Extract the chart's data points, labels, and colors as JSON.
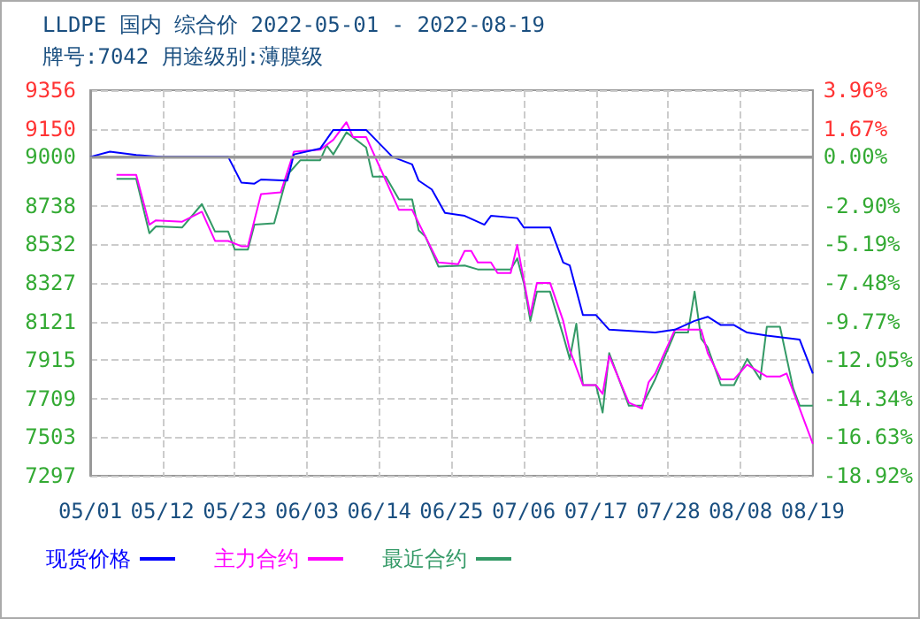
{
  "chart_data": {
    "type": "line",
    "title": "LLDPE 国内 综合价 2022-05-01 - 2022-08-19",
    "subtitle": "牌号:7042 用途级别:薄膜级",
    "xlim": [
      "2022-05-01",
      "2022-08-19"
    ],
    "xticks": [
      {
        "value": "2022-05-01",
        "label": "05/01"
      },
      {
        "value": "2022-05-12",
        "label": "05/12"
      },
      {
        "value": "2022-05-23",
        "label": "05/23"
      },
      {
        "value": "2022-06-03",
        "label": "06/03"
      },
      {
        "value": "2022-06-14",
        "label": "06/14"
      },
      {
        "value": "2022-06-25",
        "label": "06/25"
      },
      {
        "value": "2022-07-06",
        "label": "07/06"
      },
      {
        "value": "2022-07-17",
        "label": "07/17"
      },
      {
        "value": "2022-07-28",
        "label": "07/28"
      },
      {
        "value": "2022-08-08",
        "label": "08/08"
      },
      {
        "value": "2022-08-19",
        "label": "08/19"
      }
    ],
    "ylim": [
      7297,
      9356
    ],
    "yticks": [
      7297,
      7503,
      7709,
      7915,
      8121,
      8327,
      8532,
      8738,
      9000,
      9150,
      9356
    ],
    "y2lim": [
      -18.92,
      3.96
    ],
    "y2ticks": [
      {
        "value": -18.92,
        "label": "-18.92%"
      },
      {
        "value": -16.63,
        "label": "-16.63%"
      },
      {
        "value": -14.34,
        "label": "-14.34%"
      },
      {
        "value": -12.05,
        "label": "-12.05%"
      },
      {
        "value": -9.77,
        "label": "-9.77%"
      },
      {
        "value": -7.48,
        "label": "-7.48%"
      },
      {
        "value": -5.19,
        "label": "-5.19%"
      },
      {
        "value": -2.9,
        "label": "-2.90%"
      },
      {
        "value": 0,
        "label": "0.00%"
      },
      {
        "value": 1.67,
        "label": "1.67%"
      },
      {
        "value": 3.96,
        "label": "3.96%"
      }
    ],
    "grid": true,
    "legend": "bottom left",
    "marker": "none",
    "ref_lines": [
      {
        "axis": "y",
        "value": 9000,
        "color": "#999999"
      }
    ],
    "series": [
      {
        "name": "现货价格",
        "color": "#0000ff",
        "x": [
          "2022-05-01",
          "2022-05-04",
          "2022-05-08",
          "2022-05-12",
          "2022-05-22",
          "2022-05-24",
          "2022-05-26",
          "2022-05-27",
          "2022-05-31",
          "2022-06-01",
          "2022-06-05",
          "2022-06-07",
          "2022-06-12",
          "2022-06-16",
          "2022-06-19",
          "2022-06-20",
          "2022-06-22",
          "2022-06-24",
          "2022-06-27",
          "2022-06-30",
          "2022-07-01",
          "2022-07-05",
          "2022-07-06",
          "2022-07-10",
          "2022-07-12",
          "2022-07-13",
          "2022-07-15",
          "2022-07-17",
          "2022-07-19",
          "2022-07-26",
          "2022-07-29",
          "2022-08-01",
          "2022-08-03",
          "2022-08-05",
          "2022-08-07",
          "2022-08-09",
          "2022-08-12",
          "2022-08-17",
          "2022-08-19"
        ],
        "values": [
          9000,
          9028,
          9010,
          9000,
          9000,
          8863,
          8857,
          8879,
          8873,
          9013,
          9044,
          9144,
          9144,
          9000,
          8960,
          8873,
          8826,
          8701,
          8685,
          8638,
          8685,
          8673,
          8623,
          8623,
          8436,
          8420,
          8155,
          8155,
          8077,
          8062,
          8077,
          8124,
          8146,
          8102,
          8102,
          8062,
          8046,
          8024,
          7843
        ]
      },
      {
        "name": "主力合约",
        "color": "#ff00ff",
        "x": [
          "2022-05-05",
          "2022-05-08",
          "2022-05-10",
          "2022-05-11",
          "2022-05-15",
          "2022-05-18",
          "2022-05-20",
          "2022-05-22",
          "2022-05-24",
          "2022-05-25",
          "2022-05-27",
          "2022-05-30",
          "2022-06-01",
          "2022-06-05",
          "2022-06-07",
          "2022-06-09",
          "2022-06-10",
          "2022-06-12",
          "2022-06-14",
          "2022-06-17",
          "2022-06-19",
          "2022-06-21",
          "2022-06-23",
          "2022-06-26",
          "2022-06-27",
          "2022-06-28",
          "2022-06-29",
          "2022-07-01",
          "2022-07-02",
          "2022-07-04",
          "2022-07-05",
          "2022-07-07",
          "2022-07-08",
          "2022-07-10",
          "2022-07-12",
          "2022-07-13",
          "2022-07-15",
          "2022-07-17",
          "2022-07-18",
          "2022-07-19",
          "2022-07-22",
          "2022-07-24",
          "2022-07-25",
          "2022-07-26",
          "2022-07-29",
          "2022-07-31",
          "2022-08-02",
          "2022-08-03",
          "2022-08-05",
          "2022-08-07",
          "2022-08-09",
          "2022-08-12",
          "2022-08-14",
          "2022-08-15",
          "2022-08-19"
        ],
        "values": [
          8904,
          8904,
          8638,
          8661,
          8654,
          8707,
          8551,
          8551,
          8523,
          8523,
          8801,
          8810,
          9028,
          9038,
          9091,
          9185,
          9106,
          9106,
          8951,
          8717,
          8717,
          8576,
          8436,
          8427,
          8498,
          8498,
          8436,
          8436,
          8380,
          8380,
          8530,
          8155,
          8327,
          8327,
          8124,
          7968,
          7781,
          7781,
          7734,
          7937,
          7687,
          7656,
          7796,
          7843,
          8077,
          8077,
          8077,
          7952,
          7812,
          7812,
          7890,
          7827,
          7827,
          7843,
          7468
        ]
      },
      {
        "name": "最近合约",
        "color": "#339966",
        "x": [
          "2022-05-05",
          "2022-05-08",
          "2022-05-10",
          "2022-05-11",
          "2022-05-15",
          "2022-05-18",
          "2022-05-20",
          "2022-05-22",
          "2022-05-23",
          "2022-05-25",
          "2022-05-26",
          "2022-05-29",
          "2022-05-31",
          "2022-06-02",
          "2022-06-05",
          "2022-06-06",
          "2022-06-07",
          "2022-06-09",
          "2022-06-12",
          "2022-06-13",
          "2022-06-15",
          "2022-06-17",
          "2022-06-19",
          "2022-06-20",
          "2022-06-21",
          "2022-06-23",
          "2022-06-27",
          "2022-06-29",
          "2022-07-04",
          "2022-07-05",
          "2022-07-06",
          "2022-07-07",
          "2022-07-08",
          "2022-07-10",
          "2022-07-12",
          "2022-07-13",
          "2022-07-14",
          "2022-07-15",
          "2022-07-17",
          "2022-07-18",
          "2022-07-19",
          "2022-07-22",
          "2022-07-24",
          "2022-07-26",
          "2022-07-29",
          "2022-07-31",
          "2022-08-01",
          "2022-08-02",
          "2022-08-03",
          "2022-08-05",
          "2022-08-07",
          "2022-08-09",
          "2022-08-11",
          "2022-08-12",
          "2022-08-14",
          "2022-08-16",
          "2022-08-17",
          "2022-08-19"
        ],
        "values": [
          8882,
          8882,
          8592,
          8629,
          8623,
          8748,
          8601,
          8601,
          8505,
          8505,
          8638,
          8645,
          8904,
          8982,
          8982,
          9060,
          9013,
          9131,
          9050,
          8894,
          8894,
          8773,
          8773,
          8607,
          8576,
          8414,
          8420,
          8399,
          8399,
          8458,
          8327,
          8124,
          8280,
          8280,
          8046,
          7921,
          8109,
          7781,
          7781,
          7634,
          7952,
          7671,
          7671,
          7812,
          8062,
          8062,
          8280,
          8030,
          7983,
          7781,
          7781,
          7921,
          7812,
          8093,
          8093,
          7765,
          7671,
          7671
        ]
      }
    ]
  }
}
